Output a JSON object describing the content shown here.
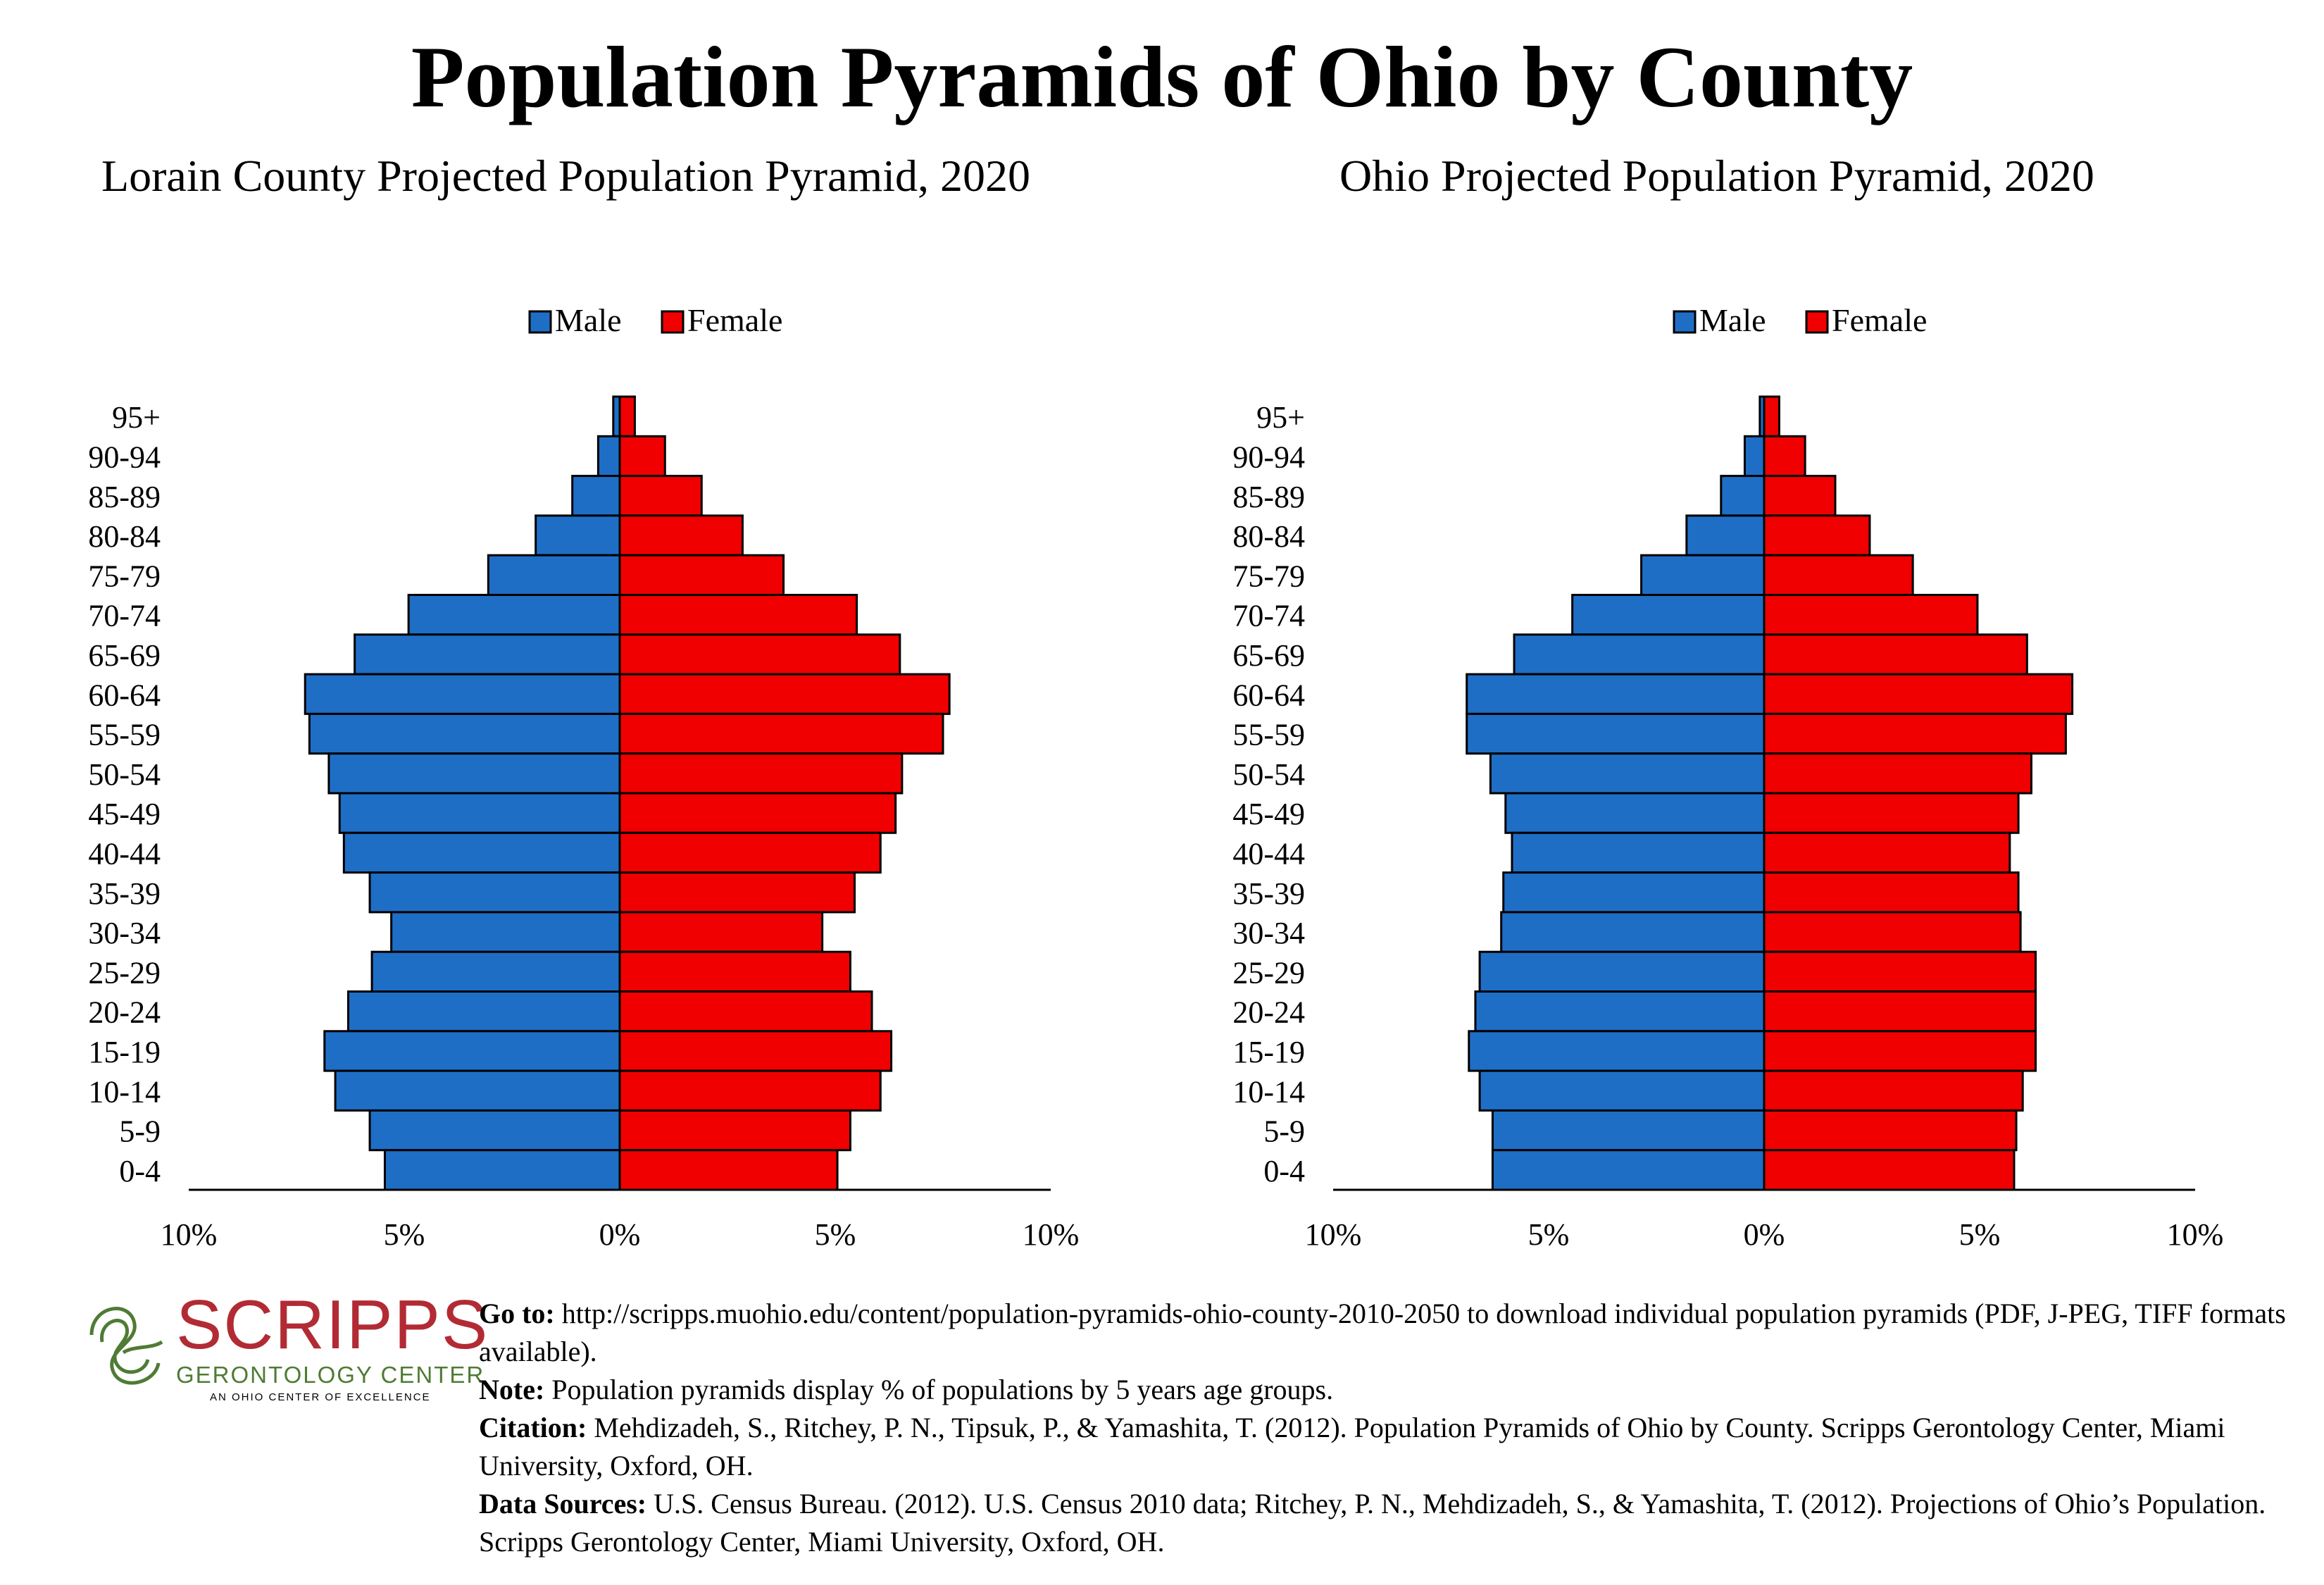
{
  "title": "Population Pyramids of Ohio by County",
  "colors": {
    "male": "#1f6ec6",
    "female": "#f00000",
    "outline": "#000000",
    "logo_red": "#b22b34",
    "logo_green": "#4f7b34"
  },
  "legend": {
    "male": "Male",
    "female": "Female"
  },
  "x_ticks": [
    "10%",
    "5%",
    "0%",
    "5%",
    "10%"
  ],
  "chart_data": [
    {
      "type": "bar",
      "orientation": "horizontal-population-pyramid",
      "title": "Lorain County Projected Population Pyramid, 2020",
      "categories": [
        "95+",
        "90-94",
        "85-89",
        "80-84",
        "75-79",
        "70-74",
        "65-69",
        "60-64",
        "55-59",
        "50-54",
        "45-49",
        "40-44",
        "35-39",
        "30-34",
        "25-29",
        "20-24",
        "15-19",
        "10-14",
        "5-9",
        "0-4"
      ],
      "series": [
        {
          "name": "Male",
          "values": [
            0.15,
            0.5,
            1.1,
            1.95,
            3.05,
            4.9,
            6.15,
            7.3,
            7.2,
            6.75,
            6.5,
            6.4,
            5.8,
            5.3,
            5.75,
            6.3,
            6.85,
            6.6,
            5.8,
            5.45
          ]
        },
        {
          "name": "Female",
          "values": [
            0.35,
            1.05,
            1.9,
            2.85,
            3.8,
            5.5,
            6.5,
            7.65,
            7.5,
            6.55,
            6.4,
            6.05,
            5.45,
            4.7,
            5.35,
            5.85,
            6.3,
            6.05,
            5.35,
            5.05
          ]
        }
      ],
      "xlim": [
        -10,
        10
      ],
      "unit": "%",
      "legend_position": "top-center",
      "grid": false
    },
    {
      "type": "bar",
      "orientation": "horizontal-population-pyramid",
      "title": "Ohio Projected Population Pyramid, 2020",
      "categories": [
        "95+",
        "90-94",
        "85-89",
        "80-84",
        "75-79",
        "70-74",
        "65-69",
        "60-64",
        "55-59",
        "50-54",
        "45-49",
        "40-44",
        "35-39",
        "30-34",
        "25-29",
        "20-24",
        "15-19",
        "10-14",
        "5-9",
        "0-4"
      ],
      "series": [
        {
          "name": "Male",
          "values": [
            0.1,
            0.45,
            1.0,
            1.8,
            2.85,
            4.45,
            5.8,
            6.9,
            6.9,
            6.35,
            6.0,
            5.85,
            6.05,
            6.1,
            6.6,
            6.7,
            6.85,
            6.6,
            6.3,
            6.3
          ]
        },
        {
          "name": "Female",
          "values": [
            0.35,
            0.95,
            1.65,
            2.45,
            3.45,
            4.95,
            6.1,
            7.15,
            7.0,
            6.2,
            5.9,
            5.7,
            5.9,
            5.95,
            6.3,
            6.3,
            6.3,
            6.0,
            5.85,
            5.8
          ]
        }
      ],
      "xlim": [
        -10,
        10
      ],
      "unit": "%",
      "legend_position": "top-center",
      "grid": false
    }
  ],
  "logo": {
    "word": "SCRIPPS",
    "sub": "GERONTOLOGY CENTER",
    "tagline": "AN OHIO CENTER OF EXCELLENCE"
  },
  "footer": {
    "goto_label": "Go to:",
    "goto_text": " http://scripps.muohio.edu/content/population-pyramids-ohio-county-2010-2050 to download individual population pyramids (PDF, J-PEG, TIFF formats available).",
    "note_label": "Note:",
    "note_text": " Population pyramids display % of populations by 5 years age groups.",
    "citation_label": "Citation:",
    "citation_text": " Mehdizadeh, S., Ritchey, P. N., Tipsuk, P., & Yamashita, T. (2012). Population Pyramids of Ohio by County. Scripps Gerontology Center, Miami University, Oxford, OH.",
    "sources_label": "Data Sources:",
    "sources_text": " U.S. Census Bureau. (2012). U.S. Census 2010 data; Ritchey, P. N., Mehdizadeh, S., & Yamashita, T. (2012). Projections of Ohio’s Population. Scripps Gerontology Center, Miami University, Oxford, OH."
  }
}
